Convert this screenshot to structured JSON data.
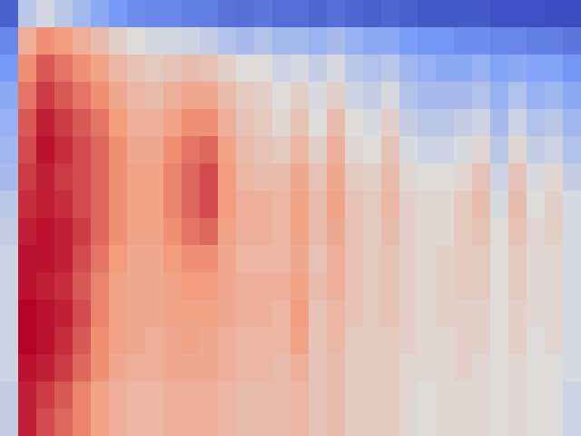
{
  "chart_data": {
    "type": "heatmap",
    "tick_labels": false,
    "cells": [
      [
        10,
        40,
        45,
        40,
        35,
        30,
        25,
        22,
        20,
        20,
        18,
        18,
        15,
        14,
        16,
        14,
        14,
        12,
        14,
        12,
        10,
        12,
        10,
        8,
        8,
        8,
        8,
        6,
        6,
        6,
        5,
        5
      ],
      [
        20,
        62,
        70,
        68,
        62,
        58,
        52,
        48,
        45,
        45,
        44,
        42,
        38,
        36,
        38,
        35,
        35,
        33,
        36,
        32,
        30,
        30,
        26,
        24,
        24,
        22,
        22,
        20,
        20,
        18,
        18,
        16
      ],
      [
        25,
        70,
        78,
        74,
        70,
        66,
        60,
        56,
        54,
        56,
        58,
        56,
        52,
        48,
        48,
        44,
        46,
        42,
        46,
        40,
        38,
        40,
        34,
        32,
        30,
        30,
        32,
        28,
        30,
        28,
        28,
        24
      ],
      [
        30,
        74,
        82,
        78,
        74,
        70,
        64,
        60,
        58,
        62,
        64,
        64,
        58,
        54,
        52,
        48,
        52,
        46,
        52,
        44,
        42,
        46,
        38,
        36,
        36,
        36,
        38,
        32,
        38,
        32,
        34,
        30
      ],
      [
        32,
        78,
        86,
        82,
        78,
        74,
        68,
        62,
        62,
        66,
        70,
        70,
        62,
        56,
        54,
        50,
        56,
        48,
        58,
        48,
        46,
        52,
        42,
        40,
        40,
        42,
        44,
        36,
        44,
        38,
        40,
        34
      ],
      [
        34,
        80,
        88,
        84,
        80,
        76,
        70,
        64,
        64,
        70,
        74,
        76,
        66,
        58,
        56,
        54,
        60,
        52,
        62,
        50,
        48,
        56,
        46,
        44,
        44,
        46,
        50,
        40,
        50,
        42,
        44,
        38
      ],
      [
        36,
        82,
        86,
        82,
        80,
        76,
        70,
        66,
        66,
        72,
        76,
        80,
        68,
        60,
        58,
        58,
        64,
        56,
        64,
        54,
        52,
        58,
        50,
        48,
        48,
        50,
        56,
        44,
        56,
        46,
        50,
        42
      ],
      [
        40,
        84,
        86,
        84,
        80,
        76,
        70,
        66,
        66,
        72,
        76,
        80,
        68,
        62,
        62,
        60,
        66,
        58,
        66,
        56,
        54,
        60,
        52,
        50,
        50,
        54,
        58,
        46,
        58,
        48,
        52,
        46
      ],
      [
        42,
        86,
        88,
        86,
        82,
        76,
        70,
        66,
        66,
        70,
        74,
        76,
        66,
        62,
        62,
        60,
        66,
        58,
        64,
        56,
        54,
        58,
        52,
        50,
        50,
        54,
        56,
        48,
        56,
        50,
        52,
        46
      ],
      [
        44,
        88,
        88,
        86,
        80,
        74,
        68,
        64,
        64,
        68,
        70,
        70,
        64,
        60,
        60,
        60,
        64,
        56,
        62,
        56,
        54,
        56,
        52,
        50,
        52,
        54,
        54,
        48,
        54,
        50,
        50,
        46
      ],
      [
        44,
        88,
        86,
        84,
        78,
        72,
        66,
        64,
        64,
        66,
        68,
        68,
        64,
        62,
        62,
        62,
        66,
        58,
        62,
        56,
        54,
        56,
        52,
        50,
        52,
        54,
        54,
        48,
        54,
        50,
        50,
        46
      ],
      [
        44,
        90,
        88,
        86,
        80,
        72,
        66,
        64,
        64,
        66,
        66,
        66,
        64,
        62,
        62,
        60,
        68,
        56,
        60,
        56,
        54,
        56,
        52,
        50,
        52,
        52,
        52,
        48,
        52,
        50,
        50,
        46
      ],
      [
        44,
        90,
        88,
        84,
        78,
        70,
        66,
        64,
        62,
        64,
        66,
        64,
        62,
        60,
        60,
        60,
        66,
        56,
        60,
        54,
        54,
        54,
        52,
        50,
        50,
        52,
        52,
        48,
        52,
        48,
        50,
        46
      ],
      [
        44,
        88,
        86,
        82,
        76,
        70,
        64,
        62,
        62,
        64,
        64,
        64,
        62,
        60,
        60,
        58,
        62,
        56,
        58,
        54,
        54,
        54,
        50,
        50,
        50,
        52,
        50,
        48,
        50,
        48,
        48,
        46
      ],
      [
        42,
        86,
        82,
        78,
        72,
        66,
        62,
        60,
        60,
        62,
        62,
        62,
        60,
        58,
        58,
        58,
        60,
        56,
        58,
        54,
        54,
        54,
        50,
        48,
        50,
        50,
        50,
        48,
        50,
        48,
        48,
        44
      ],
      [
        42,
        86,
        80,
        76,
        72,
        66,
        62,
        60,
        60,
        62,
        62,
        62,
        60,
        58,
        58,
        58,
        60,
        56,
        58,
        54,
        54,
        54,
        50,
        48,
        50,
        50,
        50,
        48,
        50,
        48,
        48,
        44
      ]
    ]
  }
}
